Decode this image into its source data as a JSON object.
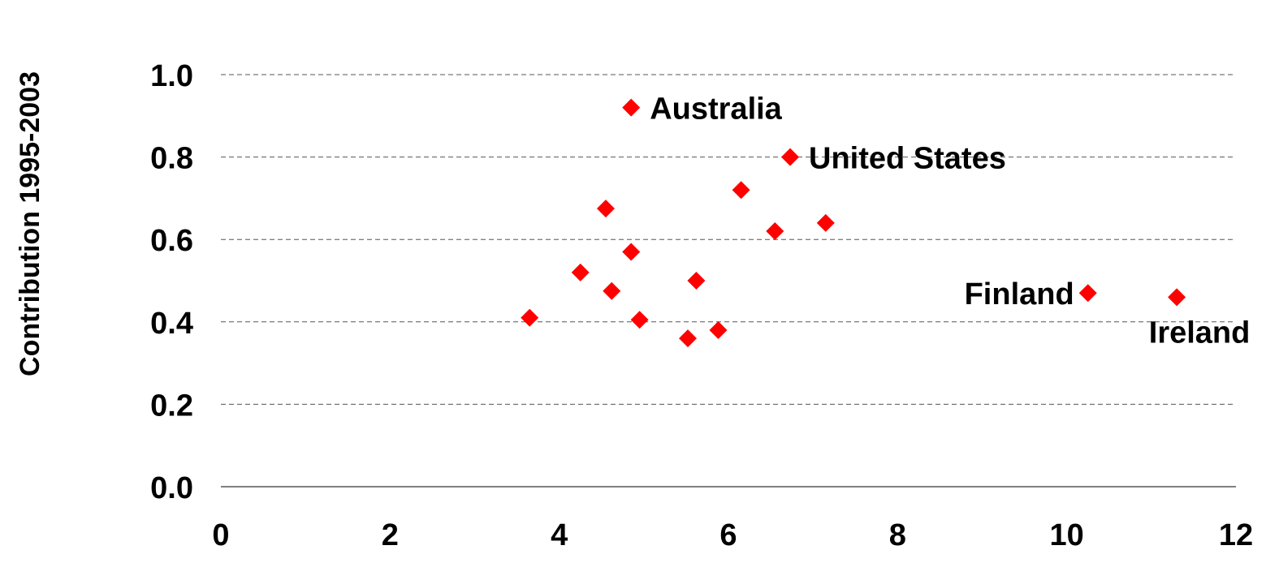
{
  "chart_data": {
    "type": "scatter",
    "title": "",
    "xlabel": "",
    "ylabel": "Contribution 1995-2003",
    "xlim": [
      0,
      12
    ],
    "ylim": [
      0,
      1.0
    ],
    "x_ticks": [
      0,
      2,
      4,
      6,
      8,
      10,
      12
    ],
    "y_ticks": [
      0.0,
      0.2,
      0.4,
      0.6,
      0.8,
      1.0
    ],
    "x_tick_labels": [
      "0",
      "2",
      "4",
      "6",
      "8",
      "10",
      "12"
    ],
    "y_tick_labels": [
      "0.0",
      "0.2",
      "0.4",
      "0.6",
      "0.8",
      "1.0"
    ],
    "grid": "horizontal dashed",
    "marker": "diamond",
    "marker_color": "#ff0000",
    "series": [
      {
        "points": [
          {
            "x": 4.85,
            "y": 0.92,
            "label": "Australia",
            "label_side": "right"
          },
          {
            "x": 6.73,
            "y": 0.8,
            "label": "United States",
            "label_side": "right"
          },
          {
            "x": 6.15,
            "y": 0.72
          },
          {
            "x": 4.55,
            "y": 0.675
          },
          {
            "x": 7.15,
            "y": 0.64
          },
          {
            "x": 6.55,
            "y": 0.62
          },
          {
            "x": 4.85,
            "y": 0.57
          },
          {
            "x": 4.25,
            "y": 0.52
          },
          {
            "x": 5.62,
            "y": 0.5
          },
          {
            "x": 4.62,
            "y": 0.475
          },
          {
            "x": 3.65,
            "y": 0.41
          },
          {
            "x": 4.95,
            "y": 0.405
          },
          {
            "x": 5.88,
            "y": 0.38
          },
          {
            "x": 5.52,
            "y": 0.36
          },
          {
            "x": 10.25,
            "y": 0.47,
            "label": "Finland",
            "label_side": "left"
          },
          {
            "x": 11.3,
            "y": 0.46,
            "label": "Ireland",
            "label_side": "below"
          }
        ]
      }
    ]
  }
}
